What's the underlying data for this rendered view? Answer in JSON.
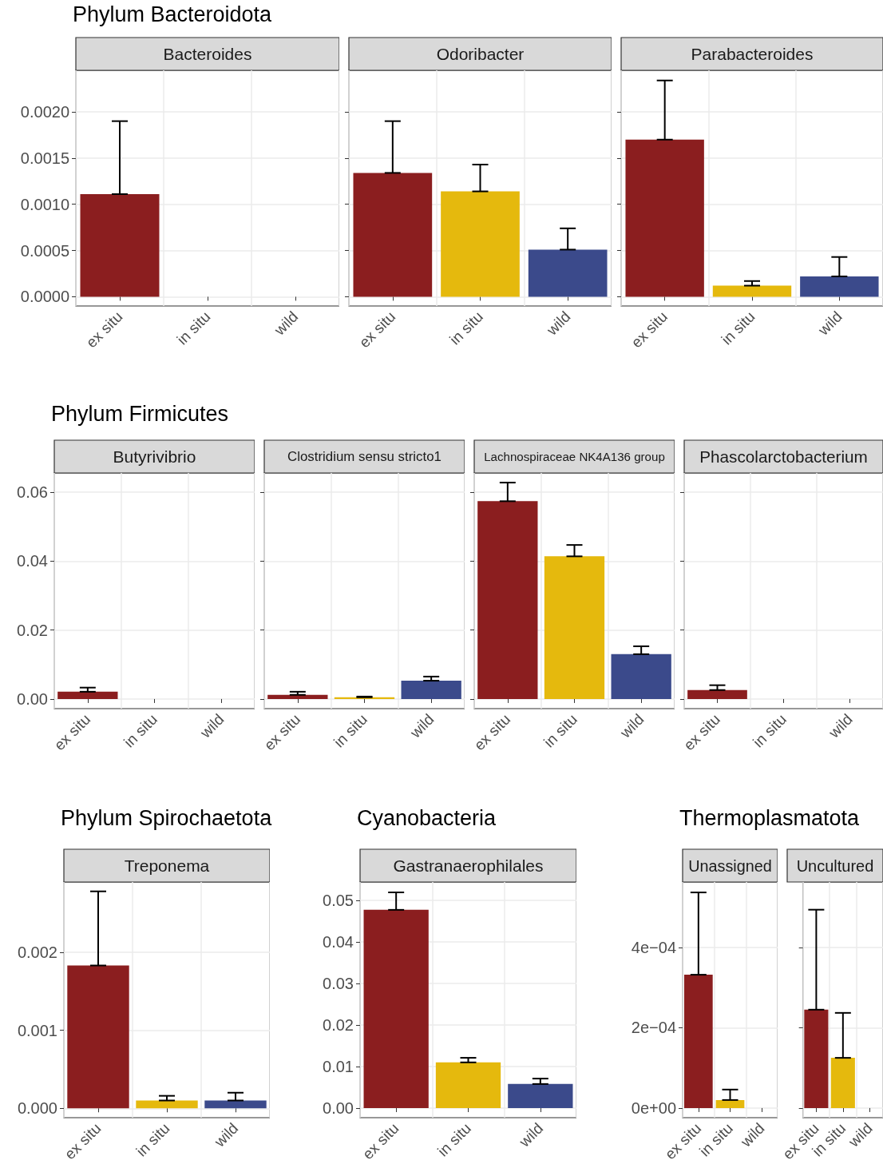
{
  "chart_data": [
    {
      "type": "bar",
      "title": "Bacteroides",
      "annotations": [
        "Phylum Bacteroidota"
      ],
      "categories": [
        "ex situ",
        "in situ",
        "wild"
      ],
      "values": [
        0.00111,
        0,
        0
      ],
      "colors": [
        "#8b1e1f",
        "#e5b90d",
        "#3b4a8b"
      ],
      "errors": [
        [
          0.00111,
          0.0019
        ],
        null,
        null
      ],
      "ylim": [
        -0.0001,
        0.00245
      ],
      "yticks": [
        {
          "value": 0,
          "label": "0.0000"
        },
        {
          "value": 0.0005,
          "label": "0.0005"
        },
        {
          "value": 0.001,
          "label": "0.0010"
        },
        {
          "value": 0.0015,
          "label": "0.0015"
        },
        {
          "value": 0.002,
          "label": "0.0020"
        }
      ],
      "grid": true
    },
    {
      "type": "bar",
      "title": "Odoribacter",
      "categories": [
        "ex situ",
        "in situ",
        "wild"
      ],
      "values": [
        0.00134,
        0.00114,
        0.00051
      ],
      "colors": [
        "#8b1e1f",
        "#e5b90d",
        "#3b4a8b"
      ],
      "errors": [
        [
          0.00134,
          0.0019
        ],
        [
          0.00114,
          0.00143
        ],
        [
          0.00051,
          0.00074
        ]
      ],
      "ylim": [
        -0.0001,
        0.00245
      ],
      "yticks": [
        {
          "value": 0,
          "label": null
        },
        {
          "value": 0.0005,
          "label": null
        },
        {
          "value": 0.001,
          "label": null
        },
        {
          "value": 0.0015,
          "label": null
        },
        {
          "value": 0.002,
          "label": null
        }
      ],
      "grid": true,
      "tick_labels": "x"
    },
    {
      "type": "bar",
      "title": "Parabacteroides",
      "categories": [
        "ex situ",
        "in situ",
        "wild"
      ],
      "values": [
        0.0017,
        0.00012,
        0.00022
      ],
      "colors": [
        "#8b1e1f",
        "#e5b90d",
        "#3b4a8b"
      ],
      "errors": [
        [
          0.0017,
          0.00234
        ],
        [
          0.00012,
          0.00017
        ],
        [
          0.00022,
          0.00043
        ]
      ],
      "ylim": [
        -0.0001,
        0.00245
      ],
      "yticks": [
        {
          "value": 0,
          "label": null
        },
        {
          "value": 0.0005,
          "label": null
        },
        {
          "value": 0.001,
          "label": null
        },
        {
          "value": 0.0015,
          "label": null
        },
        {
          "value": 0.002,
          "label": null
        }
      ],
      "grid": true,
      "tick_labels": "x"
    },
    {
      "type": "bar",
      "title": "Butyrivibrio",
      "annotations": [
        "Phylum Firmicutes"
      ],
      "categories": [
        "ex situ",
        "in situ",
        "wild"
      ],
      "values": [
        0.0021,
        0,
        0
      ],
      "colors": [
        "#8b1e1f",
        "#e5b90d",
        "#3b4a8b"
      ],
      "errors": [
        [
          0.0021,
          0.0033
        ],
        null,
        null
      ],
      "ylim": [
        -0.0028,
        0.0656
      ],
      "yticks": [
        {
          "value": 0,
          "label": "0.00"
        },
        {
          "value": 0.02,
          "label": "0.02"
        },
        {
          "value": 0.04,
          "label": "0.04"
        },
        {
          "value": 0.06,
          "label": "0.06"
        }
      ],
      "grid": true
    },
    {
      "type": "bar",
      "title": "Clostridium sensu stricto1",
      "categories": [
        "ex situ",
        "in situ",
        "wild"
      ],
      "values": [
        0.0012,
        0.0005,
        0.0053
      ],
      "colors": [
        "#8b1e1f",
        "#e5b90d",
        "#3b4a8b"
      ],
      "errors": [
        [
          0.0012,
          0.0021
        ],
        [
          0.0005,
          0.0007
        ],
        [
          0.0053,
          0.0065
        ]
      ],
      "ylim": [
        -0.0028,
        0.0656
      ],
      "yticks": [
        {
          "value": 0,
          "label": null
        },
        {
          "value": 0.02,
          "label": null
        },
        {
          "value": 0.04,
          "label": null
        },
        {
          "value": 0.06,
          "label": null
        }
      ],
      "grid": true,
      "tick_labels": "x"
    },
    {
      "type": "bar",
      "title": "Lachnospiraceae NK4A136 group",
      "categories": [
        "ex situ",
        "in situ",
        "wild"
      ],
      "values": [
        0.0574,
        0.0414,
        0.013
      ],
      "colors": [
        "#8b1e1f",
        "#e5b90d",
        "#3b4a8b"
      ],
      "errors": [
        [
          0.0574,
          0.0628
        ],
        [
          0.0414,
          0.0447
        ],
        [
          0.013,
          0.0153
        ]
      ],
      "ylim": [
        -0.0028,
        0.0656
      ],
      "yticks": [
        {
          "value": 0,
          "label": null
        },
        {
          "value": 0.02,
          "label": null
        },
        {
          "value": 0.04,
          "label": null
        },
        {
          "value": 0.06,
          "label": null
        }
      ],
      "grid": true,
      "tick_labels": "x"
    },
    {
      "type": "bar",
      "title": "Phascolarctobacterium",
      "categories": [
        "ex situ",
        "in situ",
        "wild"
      ],
      "values": [
        0.0026,
        0,
        0
      ],
      "colors": [
        "#8b1e1f",
        "#e5b90d",
        "#3b4a8b"
      ],
      "errors": [
        [
          0.0026,
          0.004
        ],
        null,
        null
      ],
      "ylim": [
        -0.0028,
        0.0656
      ],
      "yticks": [
        {
          "value": 0,
          "label": null
        },
        {
          "value": 0.02,
          "label": null
        },
        {
          "value": 0.04,
          "label": null
        },
        {
          "value": 0.06,
          "label": null
        }
      ],
      "grid": true,
      "tick_labels": "x"
    },
    {
      "type": "bar",
      "title": "Treponema",
      "annotations": [
        "Phylum Spirochaetota"
      ],
      "categories": [
        "ex situ",
        "in situ",
        "wild"
      ],
      "values": [
        0.00183,
        0.0001,
        0.0001
      ],
      "colors": [
        "#8b1e1f",
        "#e5b90d",
        "#3b4a8b"
      ],
      "errors": [
        [
          0.00183,
          0.00278
        ],
        [
          0.0001,
          0.00016
        ],
        [
          0.0001,
          0.0002
        ]
      ],
      "ylim": [
        -0.00012,
        0.0029
      ],
      "yticks": [
        {
          "value": 0,
          "label": "0.000"
        },
        {
          "value": 0.001,
          "label": "0.001"
        },
        {
          "value": 0.002,
          "label": "0.002"
        }
      ],
      "grid": true
    },
    {
      "type": "bar",
      "title": "Gastranaerophilales",
      "annotations": [
        "Cyanobacteria"
      ],
      "categories": [
        "ex situ",
        "in situ",
        "wild"
      ],
      "values": [
        0.0477,
        0.011,
        0.0058
      ],
      "colors": [
        "#8b1e1f",
        "#e5b90d",
        "#3b4a8b"
      ],
      "errors": [
        [
          0.0477,
          0.0519
        ],
        [
          0.011,
          0.0121
        ],
        [
          0.0058,
          0.0071
        ]
      ],
      "ylim": [
        -0.0023,
        0.0544
      ],
      "yticks": [
        {
          "value": 0,
          "label": "0.00"
        },
        {
          "value": 0.01,
          "label": "0.01"
        },
        {
          "value": 0.02,
          "label": "0.02"
        },
        {
          "value": 0.03,
          "label": "0.03"
        },
        {
          "value": 0.04,
          "label": "0.04"
        },
        {
          "value": 0.05,
          "label": "0.05"
        }
      ],
      "grid": true
    },
    {
      "type": "bar",
      "title": "Unassigned",
      "annotations": [
        "Thermoplasmatota"
      ],
      "categories": [
        "ex situ",
        "in situ",
        "wild"
      ],
      "values": [
        0.000332,
        2e-05,
        0
      ],
      "colors": [
        "#8b1e1f",
        "#e5b90d",
        "#3b4a8b"
      ],
      "errors": [
        [
          0.000332,
          0.000537
        ],
        [
          2e-05,
          4.6e-05
        ],
        null
      ],
      "ylim": [
        -2.4e-05,
        0.000563
      ],
      "yticks": [
        {
          "value": 0,
          "label": "0e+00"
        },
        {
          "value": 0.0002,
          "label": "2e−04"
        },
        {
          "value": 0.0004,
          "label": "4e−04"
        }
      ],
      "grid": true
    },
    {
      "type": "bar",
      "title": "Uncultured",
      "categories": [
        "ex situ",
        "in situ",
        "wild"
      ],
      "values": [
        0.000245,
        0.000125,
        0
      ],
      "colors": [
        "#8b1e1f",
        "#e5b90d",
        "#3b4a8b"
      ],
      "errors": [
        [
          0.000245,
          0.000494
        ],
        [
          0.000125,
          0.000237
        ],
        null
      ],
      "ylim": [
        -2.4e-05,
        0.000563
      ],
      "yticks": [
        {
          "value": 0,
          "label": null
        },
        {
          "value": 0.0002,
          "label": null
        },
        {
          "value": 0.0004,
          "label": null
        }
      ],
      "grid": true,
      "tick_labels": "x"
    }
  ]
}
